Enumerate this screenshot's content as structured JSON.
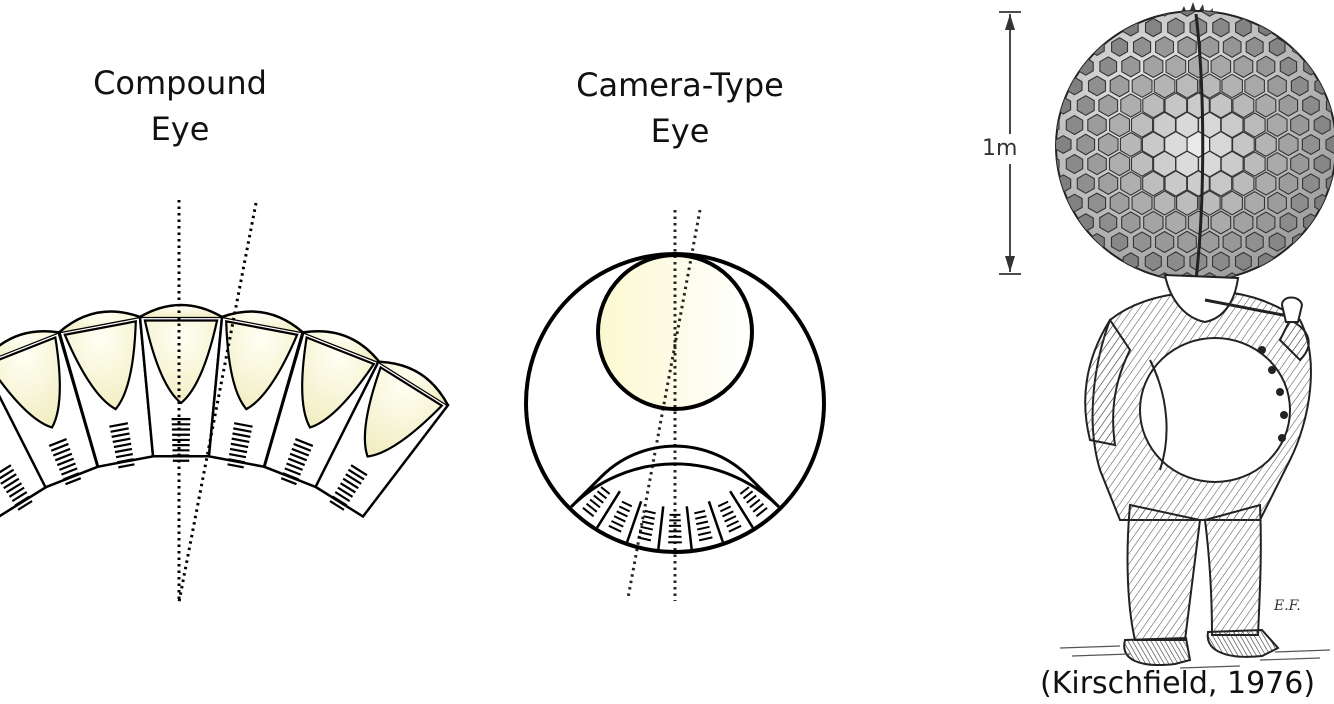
{
  "compound_eye": {
    "title_line1": "Compound",
    "title_line2": "Eye"
  },
  "camera_eye": {
    "title_line1": "Camera-Type",
    "title_line2": "Eye"
  },
  "illustration": {
    "scale_label": "1m",
    "artist_initials": "E.F.",
    "caption": "(Kirschfield, 1976)"
  },
  "colors": {
    "lens_fill_light": "#fffff0",
    "lens_fill_dark": "#f3efc2",
    "stroke": "#000000"
  }
}
